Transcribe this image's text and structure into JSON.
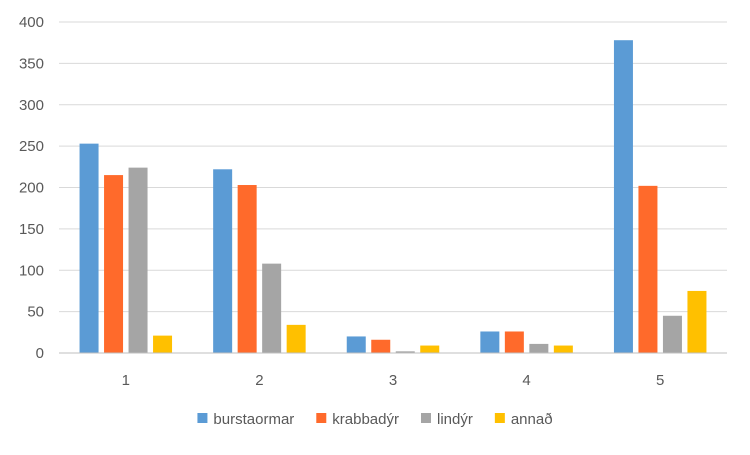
{
  "chart_data": {
    "type": "bar",
    "title": "",
    "xlabel": "",
    "ylabel": "",
    "categories": [
      "1",
      "2",
      "3",
      "4",
      "5"
    ],
    "ylim": [
      0,
      400
    ],
    "yticks": [
      "0",
      "50",
      "100",
      "150",
      "200",
      "250",
      "300",
      "350",
      "400"
    ],
    "grid": true,
    "legend_position": "bottom",
    "series": [
      {
        "name": "burstaormar",
        "color": "#5b9bd5",
        "values": [
          253,
          222,
          20,
          26,
          378
        ]
      },
      {
        "name": "krabbadýr",
        "color": "#ff6a2b",
        "values": [
          215,
          203,
          16,
          26,
          202
        ]
      },
      {
        "name": "lindýr",
        "color": "#a5a5a5",
        "values": [
          224,
          108,
          2,
          11,
          45
        ]
      },
      {
        "name": "annað",
        "color": "#ffc000",
        "values": [
          21,
          34,
          9,
          9,
          75
        ]
      }
    ]
  }
}
